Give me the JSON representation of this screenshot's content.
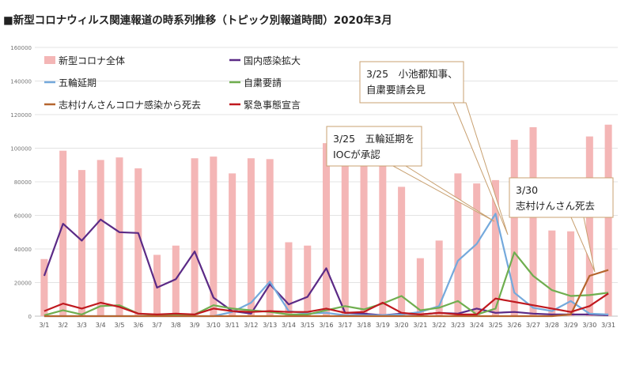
{
  "chart_data": {
    "type": "bar",
    "title": "■新型コロナウィルス関連報道の時系列推移（トピック別報道時間）2020年3月",
    "categories": [
      "3/1",
      "3/2",
      "3/3",
      "3/4",
      "3/5",
      "3/6",
      "3/7",
      "3/8",
      "3/9",
      "3/10",
      "3/11",
      "3/12",
      "3/13",
      "3/14",
      "3/15",
      "3/16",
      "3/17",
      "3/18",
      "3/19",
      "3/20",
      "3/21",
      "3/22",
      "3/23",
      "3/24",
      "3/25",
      "3/26",
      "3/27",
      "3/28",
      "3/29",
      "3/30",
      "3/31"
    ],
    "ylim": [
      0,
      160000
    ],
    "yticks": [
      "0",
      "20000",
      "40000",
      "60000",
      "80000",
      "100000",
      "120000",
      "140000",
      "160000"
    ],
    "grid": true,
    "bar_series": {
      "name": "新型コロナ全体",
      "color": "#f4b6b6",
      "values": [
        34000,
        98500,
        87000,
        93000,
        94500,
        88000,
        36500,
        42000,
        94000,
        95000,
        85000,
        94000,
        93500,
        44000,
        42000,
        103000,
        95000,
        91500,
        91000,
        77000,
        34500,
        45000,
        85000,
        79000,
        81000,
        105000,
        112500,
        51000,
        50500,
        107000,
        114000
      ]
    },
    "line_series": [
      {
        "name": "国内感染拡大",
        "color": "#5b2a86",
        "values": [
          24000,
          55000,
          45000,
          57500,
          50000,
          49500,
          17000,
          22000,
          38500,
          11000,
          3000,
          1500,
          19000,
          7000,
          11500,
          28500,
          2000,
          1500,
          500,
          1500,
          1000,
          2000,
          1500,
          4500,
          2000,
          2500,
          1500,
          1000,
          1000,
          1000,
          500
        ]
      },
      {
        "name": "五輪延期",
        "color": "#74a9dc",
        "values": [
          0,
          0,
          0,
          0,
          0,
          0,
          0,
          0,
          0,
          0,
          2500,
          8000,
          20500,
          3000,
          1500,
          2000,
          500,
          500,
          500,
          1000,
          2500,
          6000,
          33000,
          43000,
          61000,
          14000,
          5000,
          3000,
          9000,
          1500,
          1000
        ]
      },
      {
        "name": "自粛要請",
        "color": "#6fae4f",
        "values": [
          500,
          3500,
          1000,
          6000,
          6500,
          1500,
          500,
          500,
          1000,
          6500,
          4500,
          3500,
          2500,
          1000,
          1000,
          3500,
          6000,
          4000,
          7500,
          12000,
          3500,
          5000,
          9000,
          1000,
          4500,
          38000,
          24000,
          15500,
          12000,
          12500,
          14000
        ]
      },
      {
        "name": "志村けんさんコロナ感染から死去",
        "color": "#b5652e",
        "values": [
          0,
          0,
          0,
          0,
          0,
          0,
          0,
          0,
          0,
          0,
          0,
          0,
          0,
          0,
          0,
          0,
          0,
          0,
          0,
          0,
          0,
          0,
          0,
          0,
          0,
          0,
          0,
          0,
          1000,
          24000,
          27500
        ]
      },
      {
        "name": "緊急事態宣言",
        "color": "#c0191f",
        "values": [
          3000,
          7500,
          4500,
          8000,
          5500,
          1500,
          1000,
          1500,
          1000,
          4500,
          3000,
          2500,
          3000,
          2500,
          2500,
          4500,
          2000,
          2500,
          8000,
          2000,
          1000,
          2000,
          1000,
          1000,
          10500,
          8500,
          6500,
          4500,
          2500,
          6000,
          13500
        ]
      }
    ],
    "legend": {
      "position": "top-left"
    },
    "annotations": [
      {
        "line1": "3/25　小池都知事、",
        "line2": "自粛要請会見",
        "target": "3/25"
      },
      {
        "line1": "3/25　五輪延期を",
        "line2": "IOCが承認",
        "target": "3/25"
      },
      {
        "line1": "3/30",
        "line2": "志村けんさん死去",
        "target": "3/30"
      }
    ]
  }
}
